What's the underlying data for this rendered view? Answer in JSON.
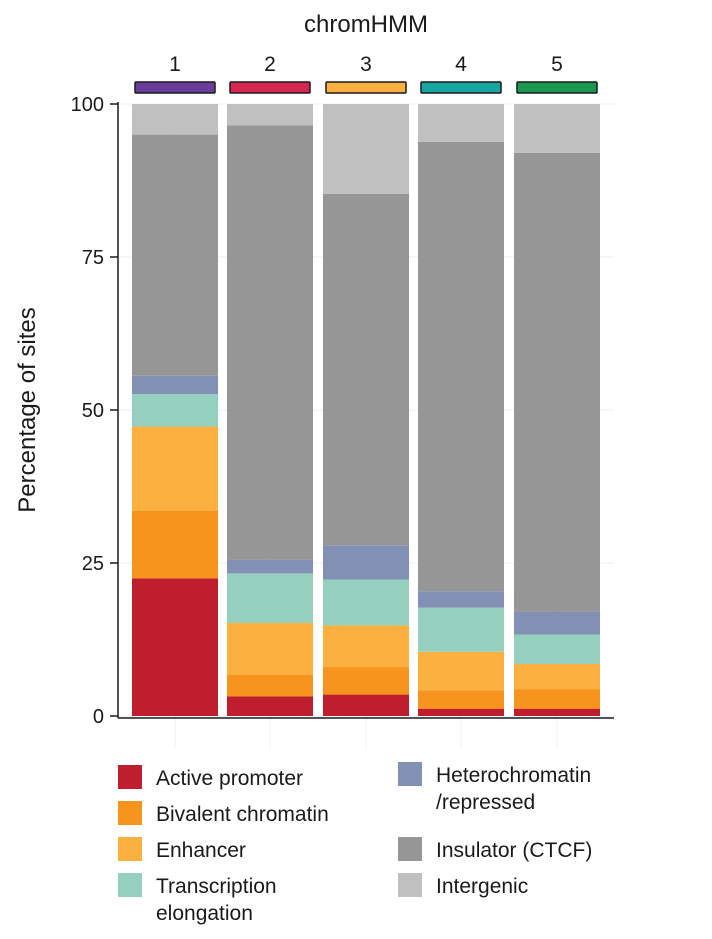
{
  "chart_data": {
    "type": "bar",
    "stacked": true,
    "title": "chromHMM",
    "ylabel": "Percentage of sites",
    "ylim": [
      0,
      100
    ],
    "yticks": [
      0,
      25,
      50,
      75,
      100
    ],
    "grid": true,
    "legend_position": "bottom",
    "categories": [
      "1",
      "2",
      "3",
      "4",
      "5"
    ],
    "category_colors": [
      "#6a3d9a",
      "#d7264f",
      "#fbb040",
      "#17a6a0",
      "#1a9850"
    ],
    "series": [
      {
        "name": "Active promoter",
        "color": "#be1e2d",
        "values": [
          22.5,
          3.2,
          3.5,
          1.2,
          1.2
        ]
      },
      {
        "name": "Bivalent chromatin",
        "color": "#f7941d",
        "values": [
          11.0,
          3.5,
          4.5,
          3.0,
          3.2
        ]
      },
      {
        "name": "Enhancer",
        "color": "#fbb040",
        "values": [
          13.8,
          8.5,
          6.8,
          6.3,
          4.1
        ]
      },
      {
        "name": "Transcription elongation",
        "color": "#95d0bf",
        "values": [
          5.3,
          8.1,
          7.5,
          7.2,
          4.8
        ]
      },
      {
        "name": "Heterochromatin /repressed",
        "color": "#8390b6",
        "values": [
          3.0,
          2.2,
          5.6,
          2.7,
          3.7
        ]
      },
      {
        "name": "Insulator (CTCF)",
        "color": "#969696",
        "values": [
          39.4,
          71.0,
          57.4,
          73.4,
          75.0
        ]
      },
      {
        "name": "Intergenic",
        "color": "#c0c0c0",
        "values": [
          5.0,
          3.5,
          14.7,
          6.2,
          8.0
        ]
      }
    ]
  }
}
